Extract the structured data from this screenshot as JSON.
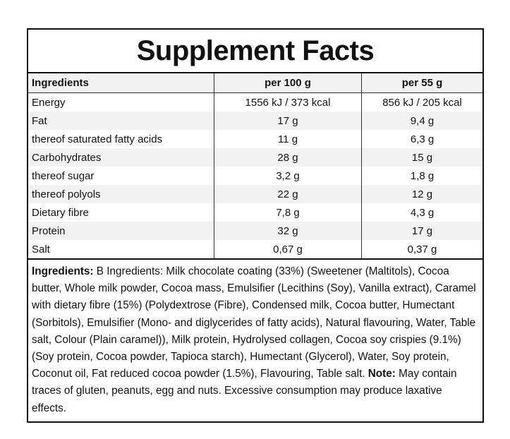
{
  "title": "Supplement Facts",
  "table": {
    "headers": [
      "Ingredients",
      "per 100 g",
      "per 55 g"
    ],
    "rows": [
      [
        "Energy",
        "1556 kJ / 373 kcal",
        "856 kJ / 205 kcal"
      ],
      [
        "Fat",
        "17 g",
        "9,4 g"
      ],
      [
        "thereof saturated fatty acids",
        "11 g",
        "6,3 g"
      ],
      [
        "Carbohydrates",
        "28 g",
        "15 g"
      ],
      [
        "thereof sugar",
        "3,2 g",
        "1,8 g"
      ],
      [
        "thereof polyols",
        "22 g",
        "12 g"
      ],
      [
        "Dietary fibre",
        "7,8 g",
        "4,3 g"
      ],
      [
        "Protein",
        "32 g",
        "17 g"
      ],
      [
        "Salt",
        "0,67 g",
        "0,37 g"
      ]
    ]
  },
  "ingredients": {
    "label": "Ingredients:",
    "text": " B Ingredients: Milk chocolate coating (33%) (Sweetener (Maltitols), Cocoa butter, Whole milk powder, Cocoa mass, Emulsifier (Lecithins (Soy), Vanilla extract), Caramel with dietary fibre (15%) (Polydextrose (Fibre), Condensed milk, Cocoa butter, Humectant (Sorbitols), Emulsifier (Mono- and diglycerides of fatty acids), Natural flavouring, Water, Table salt, Colour (Plain caramel)), Milk protein, Hydrolysed collagen, Cocoa soy crispies (9.1%) (Soy protein, Cocoa powder, Tapioca starch), Humectant (Glycerol), Water, Soy protein, Coconut oil, Fat reduced cocoa powder (1.5%), Flavouring, Table salt. ",
    "note_label": "Note:",
    "note_text": " May contain traces of gluten, peanuts, egg and nuts. Excessive consumption may produce laxative effects."
  }
}
